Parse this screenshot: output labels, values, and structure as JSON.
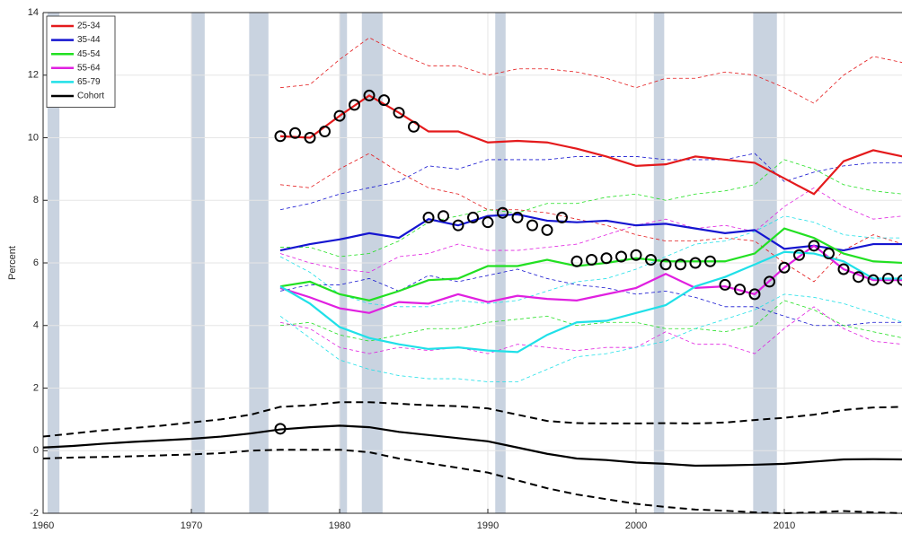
{
  "chart_data": {
    "type": "line",
    "ylabel": "Percent",
    "xlim": [
      1960,
      2018
    ],
    "ylim": [
      -2,
      14
    ],
    "xticks": [
      1960,
      1970,
      1980,
      1990,
      2000,
      2010
    ],
    "yticks": [
      -2,
      0,
      2,
      4,
      6,
      8,
      10,
      12,
      14
    ],
    "grid": true,
    "legend": "upper left",
    "recession_color": "#c9d3e0",
    "recessions": [
      [
        1960.3,
        1961.1
      ],
      [
        1970.0,
        1970.9
      ],
      [
        1973.9,
        1975.2
      ],
      [
        1980.0,
        1980.5
      ],
      [
        1981.5,
        1982.9
      ],
      [
        1990.5,
        1991.2
      ],
      [
        2001.2,
        2001.9
      ],
      [
        2007.9,
        2009.5
      ]
    ],
    "series": [
      {
        "name": "25-34",
        "color": "#e41a1c",
        "x": [
          1976,
          1978,
          1980,
          1982,
          1984,
          1986,
          1988,
          1990,
          1992,
          1994,
          1996,
          1998,
          2000,
          2002,
          2004,
          2006,
          2008,
          2010,
          2012,
          2014,
          2016,
          2018
        ],
        "values": [
          10.05,
          10.0,
          10.7,
          11.35,
          10.8,
          10.2,
          10.2,
          9.85,
          9.9,
          9.85,
          9.65,
          9.4,
          9.1,
          9.15,
          9.4,
          9.3,
          9.2,
          8.7,
          8.2,
          9.25,
          9.6,
          9.4
        ],
        "upper": [
          11.6,
          11.7,
          12.5,
          13.2,
          12.7,
          12.3,
          12.3,
          12.0,
          12.2,
          12.2,
          12.1,
          11.9,
          11.6,
          11.9,
          11.9,
          12.1,
          12.0,
          11.6,
          11.1,
          12.0,
          12.6,
          12.4
        ],
        "lower": [
          8.5,
          8.4,
          9.0,
          9.5,
          8.9,
          8.4,
          8.2,
          7.7,
          7.7,
          7.6,
          7.4,
          7.2,
          6.9,
          6.7,
          6.7,
          6.8,
          6.7,
          6.0,
          5.4,
          6.4,
          6.9,
          6.6
        ]
      },
      {
        "name": "35-44",
        "color": "#1515d0",
        "x": [
          1976,
          1978,
          1980,
          1982,
          1984,
          1986,
          1988,
          1990,
          1992,
          1994,
          1996,
          1998,
          2000,
          2002,
          2004,
          2006,
          2008,
          2010,
          2012,
          2014,
          2016,
          2018
        ],
        "values": [
          6.4,
          6.6,
          6.75,
          6.95,
          6.8,
          7.4,
          7.2,
          7.5,
          7.55,
          7.35,
          7.3,
          7.35,
          7.2,
          7.25,
          7.1,
          6.95,
          7.05,
          6.45,
          6.55,
          6.4,
          6.6,
          6.6
        ],
        "upper": [
          7.7,
          7.9,
          8.2,
          8.4,
          8.6,
          9.1,
          9.0,
          9.3,
          9.3,
          9.3,
          9.4,
          9.4,
          9.4,
          9.3,
          9.3,
          9.3,
          9.5,
          8.6,
          8.9,
          9.1,
          9.2,
          9.2
        ],
        "lower": [
          5.1,
          5.3,
          5.3,
          5.5,
          5.1,
          5.6,
          5.4,
          5.6,
          5.8,
          5.5,
          5.3,
          5.2,
          5.0,
          5.1,
          4.9,
          4.6,
          4.6,
          4.3,
          4.0,
          4.0,
          4.1,
          4.1
        ]
      },
      {
        "name": "45-54",
        "color": "#22e022",
        "x": [
          1976,
          1978,
          1980,
          1982,
          1984,
          1986,
          1988,
          1990,
          1992,
          1994,
          1996,
          1998,
          2000,
          2002,
          2004,
          2006,
          2008,
          2010,
          2012,
          2014,
          2016,
          2018
        ],
        "values": [
          5.25,
          5.4,
          5.0,
          4.8,
          5.1,
          5.45,
          5.5,
          5.9,
          5.9,
          6.1,
          5.9,
          6.0,
          6.15,
          6.05,
          6.05,
          6.05,
          6.3,
          7.1,
          6.8,
          6.3,
          6.05,
          6.0
        ],
        "upper": [
          6.5,
          6.5,
          6.2,
          6.3,
          6.7,
          7.3,
          7.5,
          7.7,
          7.6,
          7.9,
          7.9,
          8.1,
          8.2,
          8.0,
          8.2,
          8.3,
          8.5,
          9.3,
          9.0,
          8.5,
          8.3,
          8.2
        ],
        "lower": [
          4.0,
          4.1,
          3.7,
          3.5,
          3.7,
          3.9,
          3.9,
          4.1,
          4.2,
          4.3,
          4.0,
          4.1,
          4.1,
          3.9,
          3.9,
          3.8,
          4.0,
          4.8,
          4.5,
          4.0,
          3.8,
          3.6
        ]
      },
      {
        "name": "55-64",
        "color": "#e020e0",
        "x": [
          1976,
          1978,
          1980,
          1982,
          1984,
          1986,
          1988,
          1990,
          1992,
          1994,
          1996,
          1998,
          2000,
          2002,
          2004,
          2006,
          2008,
          2010,
          2012,
          2014,
          2016,
          2018
        ],
        "values": [
          5.2,
          4.9,
          4.55,
          4.4,
          4.75,
          4.7,
          5.0,
          4.75,
          4.95,
          4.85,
          4.8,
          5.0,
          5.2,
          5.65,
          5.2,
          5.25,
          5.0,
          5.85,
          6.55,
          5.8,
          5.45,
          5.45
        ],
        "upper": [
          6.3,
          6.0,
          5.8,
          5.7,
          6.2,
          6.3,
          6.6,
          6.4,
          6.4,
          6.5,
          6.6,
          6.9,
          7.2,
          7.4,
          7.1,
          7.2,
          7.0,
          7.8,
          8.4,
          7.8,
          7.4,
          7.5
        ],
        "lower": [
          4.1,
          3.9,
          3.3,
          3.1,
          3.3,
          3.2,
          3.3,
          3.1,
          3.4,
          3.3,
          3.2,
          3.3,
          3.3,
          3.8,
          3.4,
          3.4,
          3.1,
          3.9,
          4.6,
          3.9,
          3.5,
          3.4
        ]
      },
      {
        "name": "65-79",
        "color": "#20e0e8",
        "x": [
          1976,
          1978,
          1980,
          1982,
          1984,
          1986,
          1988,
          1990,
          1992,
          1994,
          1996,
          1998,
          2000,
          2002,
          2004,
          2006,
          2008,
          2010,
          2012,
          2014,
          2016,
          2018
        ],
        "values": [
          5.25,
          4.7,
          3.95,
          3.6,
          3.4,
          3.25,
          3.3,
          3.2,
          3.15,
          3.7,
          4.1,
          4.15,
          4.4,
          4.65,
          5.25,
          5.55,
          5.95,
          6.35,
          6.3,
          6.05,
          5.5,
          5.5
        ],
        "upper": [
          6.2,
          5.7,
          5.0,
          4.7,
          4.6,
          4.6,
          4.8,
          4.7,
          4.8,
          5.1,
          5.4,
          5.5,
          5.8,
          6.2,
          6.6,
          6.7,
          7.0,
          7.5,
          7.3,
          6.9,
          6.8,
          6.8
        ],
        "lower": [
          4.3,
          3.6,
          2.9,
          2.6,
          2.4,
          2.3,
          2.3,
          2.2,
          2.2,
          2.6,
          3.0,
          3.1,
          3.3,
          3.5,
          3.9,
          4.2,
          4.5,
          5.0,
          4.9,
          4.7,
          4.4,
          4.1
        ]
      },
      {
        "name": "Cohort",
        "color": "#000000",
        "x": [
          1960,
          1962,
          1964,
          1966,
          1968,
          1970,
          1972,
          1974,
          1976,
          1978,
          1980,
          1982,
          1984,
          1986,
          1988,
          1990,
          1992,
          1994,
          1996,
          1998,
          2000,
          2002,
          2004,
          2006,
          2008,
          2010,
          2012,
          2014,
          2016,
          2018
        ],
        "values": [
          0.1,
          0.15,
          0.22,
          0.28,
          0.33,
          0.38,
          0.45,
          0.55,
          0.68,
          0.75,
          0.8,
          0.75,
          0.6,
          0.5,
          0.4,
          0.3,
          0.1,
          -0.1,
          -0.25,
          -0.3,
          -0.38,
          -0.42,
          -0.48,
          -0.47,
          -0.45,
          -0.42,
          -0.35,
          -0.28,
          -0.27,
          -0.28
        ],
        "upper": [
          0.45,
          0.55,
          0.65,
          0.72,
          0.8,
          0.9,
          1.0,
          1.15,
          1.4,
          1.45,
          1.55,
          1.55,
          1.5,
          1.45,
          1.42,
          1.35,
          1.15,
          0.95,
          0.88,
          0.87,
          0.87,
          0.88,
          0.87,
          0.9,
          0.98,
          1.05,
          1.15,
          1.3,
          1.38,
          1.4
        ],
        "lower": [
          -0.25,
          -0.22,
          -0.2,
          -0.18,
          -0.15,
          -0.12,
          -0.08,
          0,
          0.03,
          0.03,
          0.03,
          -0.05,
          -0.25,
          -0.4,
          -0.55,
          -0.7,
          -0.95,
          -1.2,
          -1.4,
          -1.55,
          -1.7,
          -1.8,
          -1.88,
          -1.92,
          -1.97,
          -2.0,
          -1.97,
          -1.93,
          -1.97,
          -2.0
        ]
      }
    ],
    "markers": {
      "color": "#000000",
      "x": [
        1976,
        1976,
        1977,
        1978,
        1979,
        1980,
        1981,
        1982,
        1983,
        1984,
        1985,
        1986,
        1987,
        1988,
        1989,
        1990,
        1991,
        1992,
        1993,
        1994,
        1995,
        1996,
        1997,
        1998,
        1999,
        2000,
        2001,
        2002,
        2003,
        2004,
        2005,
        2006,
        2007,
        2008,
        2009,
        2010,
        2011,
        2012,
        2013,
        2014,
        2015,
        2016,
        2017,
        2018
      ],
      "values": [
        0.7,
        10.05,
        10.15,
        10.0,
        10.2,
        10.7,
        11.05,
        11.35,
        11.2,
        10.8,
        10.35,
        7.45,
        7.5,
        7.2,
        7.45,
        7.3,
        7.6,
        7.45,
        7.2,
        7.05,
        7.45,
        6.05,
        6.1,
        6.15,
        6.2,
        6.25,
        6.1,
        5.95,
        5.95,
        6.0,
        6.05,
        5.3,
        5.15,
        5.0,
        5.4,
        5.85,
        6.25,
        6.55,
        6.3,
        5.8,
        5.55,
        5.45,
        5.5,
        5.45
      ]
    }
  }
}
